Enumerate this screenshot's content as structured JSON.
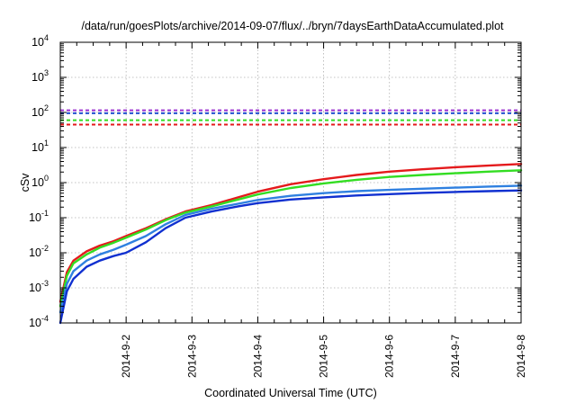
{
  "chart_data": {
    "type": "line",
    "title": "/data/run/goesPlots/archive/2014-09-07/flux/../bryn/7daysEarthDataAccumulated.plot",
    "xlabel": "Coordinated Universal Time (UTC)",
    "ylabel": "cSv",
    "y_scale": "log",
    "ylim": [
      0.0001,
      10000
    ],
    "xlim": [
      "2014-09-01",
      "2014-09-08"
    ],
    "grid": true,
    "legend": "none",
    "x_ticks": [
      {
        "date": "2014-09-02",
        "label": "2014-9-2"
      },
      {
        "date": "2014-09-03",
        "label": "2014-9-3"
      },
      {
        "date": "2014-09-04",
        "label": "2014-9-4"
      },
      {
        "date": "2014-09-05",
        "label": "2014-9-5"
      },
      {
        "date": "2014-09-06",
        "label": "2014-9-6"
      },
      {
        "date": "2014-09-07",
        "label": "2014-9-7"
      },
      {
        "date": "2014-09-08",
        "label": "2014-9-8"
      }
    ],
    "y_ticks": [
      {
        "value": 0.0001,
        "base": "10",
        "exp": "-4"
      },
      {
        "value": 0.001,
        "base": "10",
        "exp": "-3"
      },
      {
        "value": 0.01,
        "base": "10",
        "exp": "-2"
      },
      {
        "value": 0.1,
        "base": "10",
        "exp": "-1"
      },
      {
        "value": 1,
        "base": "10",
        "exp": "0"
      },
      {
        "value": 10,
        "base": "10",
        "exp": "1"
      },
      {
        "value": 100,
        "base": "10",
        "exp": "2"
      },
      {
        "value": 1000,
        "base": "10",
        "exp": "3"
      },
      {
        "value": 10000,
        "base": "10",
        "exp": "4"
      }
    ],
    "series": [
      {
        "color": "#e41a1c",
        "x": [
          "2014-09-01 00:00",
          "2014-09-01 02:24",
          "2014-09-01 04:48",
          "2014-09-01 09:36",
          "2014-09-01 14:24",
          "2014-09-01 19:12",
          "2014-09-02 00:00",
          "2014-09-02 07:12",
          "2014-09-02 14:24",
          "2014-09-02 21:36",
          "2014-09-03 07:12",
          "2014-09-03 16:48",
          "2014-09-04 00:00",
          "2014-09-04 12:00",
          "2014-09-05 00:00",
          "2014-09-05 12:00",
          "2014-09-06 00:00",
          "2014-09-06 12:00",
          "2014-09-07 00:00",
          "2014-09-07 12:00",
          "2014-09-08 00:00"
        ],
        "y": [
          0.0004,
          0.0028,
          0.006,
          0.011,
          0.016,
          0.021,
          0.03,
          0.05,
          0.09,
          0.15,
          0.23,
          0.38,
          0.55,
          0.9,
          1.25,
          1.65,
          2.05,
          2.4,
          2.75,
          3.05,
          3.4
        ]
      },
      {
        "color": "#33dd22",
        "x": [
          "2014-09-01 00:00",
          "2014-09-01 02:24",
          "2014-09-01 04:48",
          "2014-09-01 09:36",
          "2014-09-01 14:24",
          "2014-09-01 19:12",
          "2014-09-02 00:00",
          "2014-09-02 07:12",
          "2014-09-02 14:24",
          "2014-09-02 21:36",
          "2014-09-03 07:12",
          "2014-09-03 16:48",
          "2014-09-04 00:00",
          "2014-09-04 12:00",
          "2014-09-05 00:00",
          "2014-09-05 12:00",
          "2014-09-06 00:00",
          "2014-09-06 12:00",
          "2014-09-07 00:00",
          "2014-09-07 12:00",
          "2014-09-08 00:00"
        ],
        "y": [
          0.0003,
          0.0022,
          0.005,
          0.009,
          0.014,
          0.019,
          0.027,
          0.046,
          0.085,
          0.14,
          0.21,
          0.33,
          0.46,
          0.7,
          0.95,
          1.2,
          1.45,
          1.65,
          1.85,
          2.05,
          2.25
        ]
      },
      {
        "color": "#2f80e0",
        "x": [
          "2014-09-01 00:00",
          "2014-09-01 02:24",
          "2014-09-01 04:48",
          "2014-09-01 09:36",
          "2014-09-01 14:24",
          "2014-09-01 19:12",
          "2014-09-02 00:00",
          "2014-09-02 07:12",
          "2014-09-02 14:24",
          "2014-09-02 21:36",
          "2014-09-03 07:12",
          "2014-09-03 16:48",
          "2014-09-04 00:00",
          "2014-09-04 12:00",
          "2014-09-05 00:00",
          "2014-09-05 12:00",
          "2014-09-06 00:00",
          "2014-09-06 12:00",
          "2014-09-07 00:00",
          "2014-09-07 12:00",
          "2014-09-08 00:00"
        ],
        "y": [
          0.0002,
          0.0013,
          0.003,
          0.006,
          0.009,
          0.012,
          0.017,
          0.03,
          0.065,
          0.12,
          0.18,
          0.25,
          0.32,
          0.42,
          0.5,
          0.57,
          0.62,
          0.67,
          0.72,
          0.77,
          0.82
        ]
      },
      {
        "color": "#1030d0",
        "x": [
          "2014-09-01 00:00",
          "2014-09-01 02:24",
          "2014-09-01 04:48",
          "2014-09-01 09:36",
          "2014-09-01 14:24",
          "2014-09-01 19:12",
          "2014-09-02 00:00",
          "2014-09-02 07:12",
          "2014-09-02 14:24",
          "2014-09-02 21:36",
          "2014-09-03 07:12",
          "2014-09-03 16:48",
          "2014-09-04 00:00",
          "2014-09-04 12:00",
          "2014-09-05 00:00",
          "2014-09-05 12:00",
          "2014-09-06 00:00",
          "2014-09-06 12:00",
          "2014-09-07 00:00",
          "2014-09-07 12:00",
          "2014-09-08 00:00"
        ],
        "y": [
          0.0001,
          0.0008,
          0.0018,
          0.004,
          0.006,
          0.008,
          0.01,
          0.02,
          0.05,
          0.1,
          0.15,
          0.21,
          0.26,
          0.33,
          0.38,
          0.43,
          0.47,
          0.51,
          0.54,
          0.57,
          0.6
        ]
      }
    ],
    "reference_lines": [
      {
        "value": 115,
        "color": "#9b30d0",
        "style": "dashed"
      },
      {
        "value": 95,
        "color": "#2050d0",
        "style": "dashed"
      },
      {
        "value": 60,
        "color": "#33dd22",
        "style": "dashed"
      },
      {
        "value": 45,
        "color": "#e41a1c",
        "style": "dashed"
      }
    ]
  }
}
